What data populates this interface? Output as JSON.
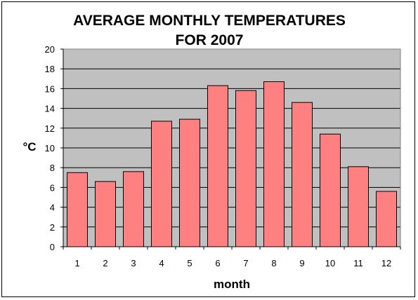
{
  "chart_data": {
    "type": "bar",
    "title_lines": [
      "AVERAGE MONTHLY TEMPERATURES",
      "FOR 2007"
    ],
    "xlabel": "month",
    "ylabel": "°C",
    "categories": [
      "1",
      "2",
      "3",
      "4",
      "5",
      "6",
      "7",
      "8",
      "9",
      "10",
      "11",
      "12"
    ],
    "values": [
      7.5,
      6.6,
      7.6,
      12.7,
      12.9,
      16.3,
      15.8,
      16.7,
      14.6,
      11.4,
      8.1,
      5.6
    ],
    "ylim": [
      0,
      20
    ],
    "yticks": [
      "0",
      "2",
      "4",
      "6",
      "8",
      "10",
      "12",
      "14",
      "16",
      "18",
      "20"
    ],
    "grid": true,
    "legend": "none",
    "colors": {
      "bar_fill": "#ff8080",
      "bar_stroke": "#000000",
      "plot_background": "#c0c0c0",
      "grid": "#000000"
    }
  }
}
